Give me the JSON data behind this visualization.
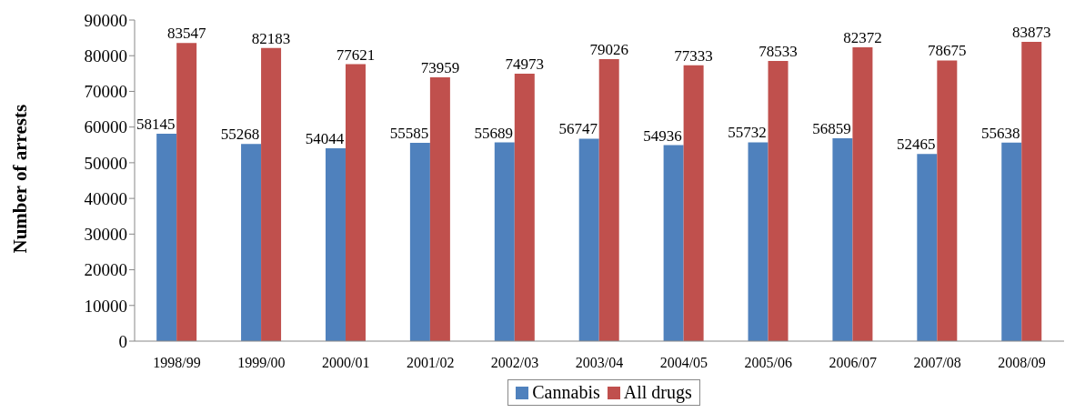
{
  "chart_data": {
    "type": "bar",
    "ylabel": "Number of arrests",
    "categories": [
      "1998/99",
      "1999/00",
      "2000/01",
      "2001/02",
      "2002/03",
      "2003/04",
      "2004/05",
      "2005/06",
      "2006/07",
      "2007/08",
      "2008/09"
    ],
    "series": [
      {
        "name": "Cannabis",
        "color": "#4f81bd",
        "values": [
          58145,
          55268,
          54044,
          55585,
          55689,
          56747,
          54936,
          55732,
          56859,
          52465,
          55638
        ]
      },
      {
        "name": "All drugs",
        "color": "#c0504d",
        "values": [
          83547,
          82183,
          77621,
          73959,
          74973,
          79026,
          77333,
          78533,
          82372,
          78675,
          83873
        ]
      }
    ],
    "ylim": [
      0,
      90000
    ],
    "yticks": [
      0,
      10000,
      20000,
      30000,
      40000,
      50000,
      60000,
      70000,
      80000,
      90000
    ],
    "grid": false,
    "legend": "bottom",
    "data_labels": true
  }
}
